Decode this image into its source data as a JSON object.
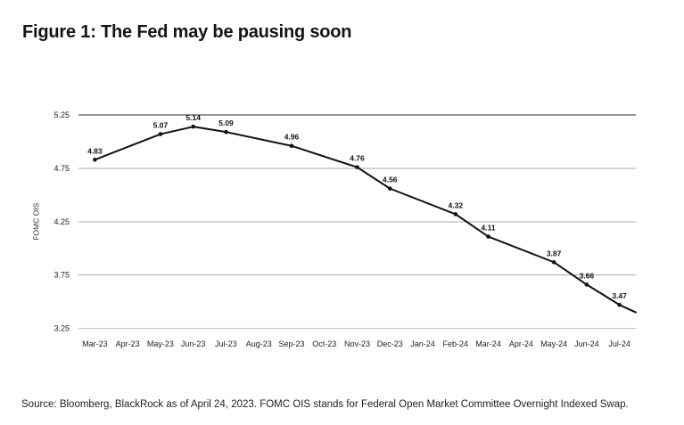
{
  "header": {
    "title": "Figure 1: The Fed may be pausing soon"
  },
  "footer": {
    "source": "Source: Bloomberg, BlackRock as of April 24, 2023. FOMC OIS stands for Federal Open Market Committee Overnight Indexed Swap."
  },
  "colors": {
    "line": "#111111",
    "marker": "#111111",
    "grid": "#a8a8a8",
    "grid_top": "#2b2b2b",
    "grid_bottom": "#c6c6c6",
    "text": "#222222",
    "title_text": "#141414"
  },
  "chart_data": {
    "type": "line",
    "title": "Figure 1: The Fed may be pausing soon",
    "xlabel": "",
    "ylabel": "FOMC OIS",
    "ylim": [
      3.25,
      5.25
    ],
    "y_ticks": [
      5.25,
      4.75,
      4.25,
      3.75,
      3.25
    ],
    "grid": true,
    "legend_position": "none",
    "markers": true,
    "data_labels": true,
    "categories": [
      "Mar-23",
      "Apr-23",
      "May-23",
      "Jun-23",
      "Jul-23",
      "Aug-23",
      "Sep-23",
      "Oct-23",
      "Nov-23",
      "Dec-23",
      "Jan-24",
      "Feb-24",
      "Mar-24",
      "Apr-24",
      "May-24",
      "Jun-24",
      "Jul-24"
    ],
    "series": [
      {
        "name": "FOMC OIS",
        "points": [
          {
            "category": "Mar-23",
            "value": 4.83
          },
          {
            "category": "May-23",
            "value": 5.07
          },
          {
            "category": "Jun-23",
            "value": 5.14
          },
          {
            "category": "Jul-23",
            "value": 5.09
          },
          {
            "category": "Sep-23",
            "value": 4.96
          },
          {
            "category": "Nov-23",
            "value": 4.76
          },
          {
            "category": "Dec-23",
            "value": 4.56
          },
          {
            "category": "Feb-24",
            "value": 4.32
          },
          {
            "category": "Mar-24",
            "value": 4.11
          },
          {
            "category": "May-24",
            "value": 3.87
          },
          {
            "category": "Jun-24",
            "value": 3.66
          },
          {
            "category": "Jul-24",
            "value": 3.47
          }
        ],
        "trailing_edge_value": 3.4
      }
    ]
  }
}
